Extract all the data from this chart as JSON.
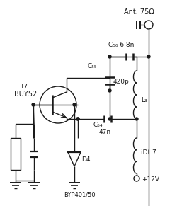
{
  "bg_color": "#ffffff",
  "line_color": "#1a1a1a",
  "labels": {
    "ant": "Ant. 75Ω",
    "c56": "C₅₆ 6,8n",
    "c55": "C₅₅",
    "c54": "C₅₄",
    "c54_val": "47n",
    "l3": "L₃",
    "dt7": "iDt 7",
    "plus12v": "+12V",
    "t7": "T7",
    "buy52": "BUY52",
    "d4": "D4",
    "byp": "BYP401/50",
    "cap420": "420p"
  }
}
